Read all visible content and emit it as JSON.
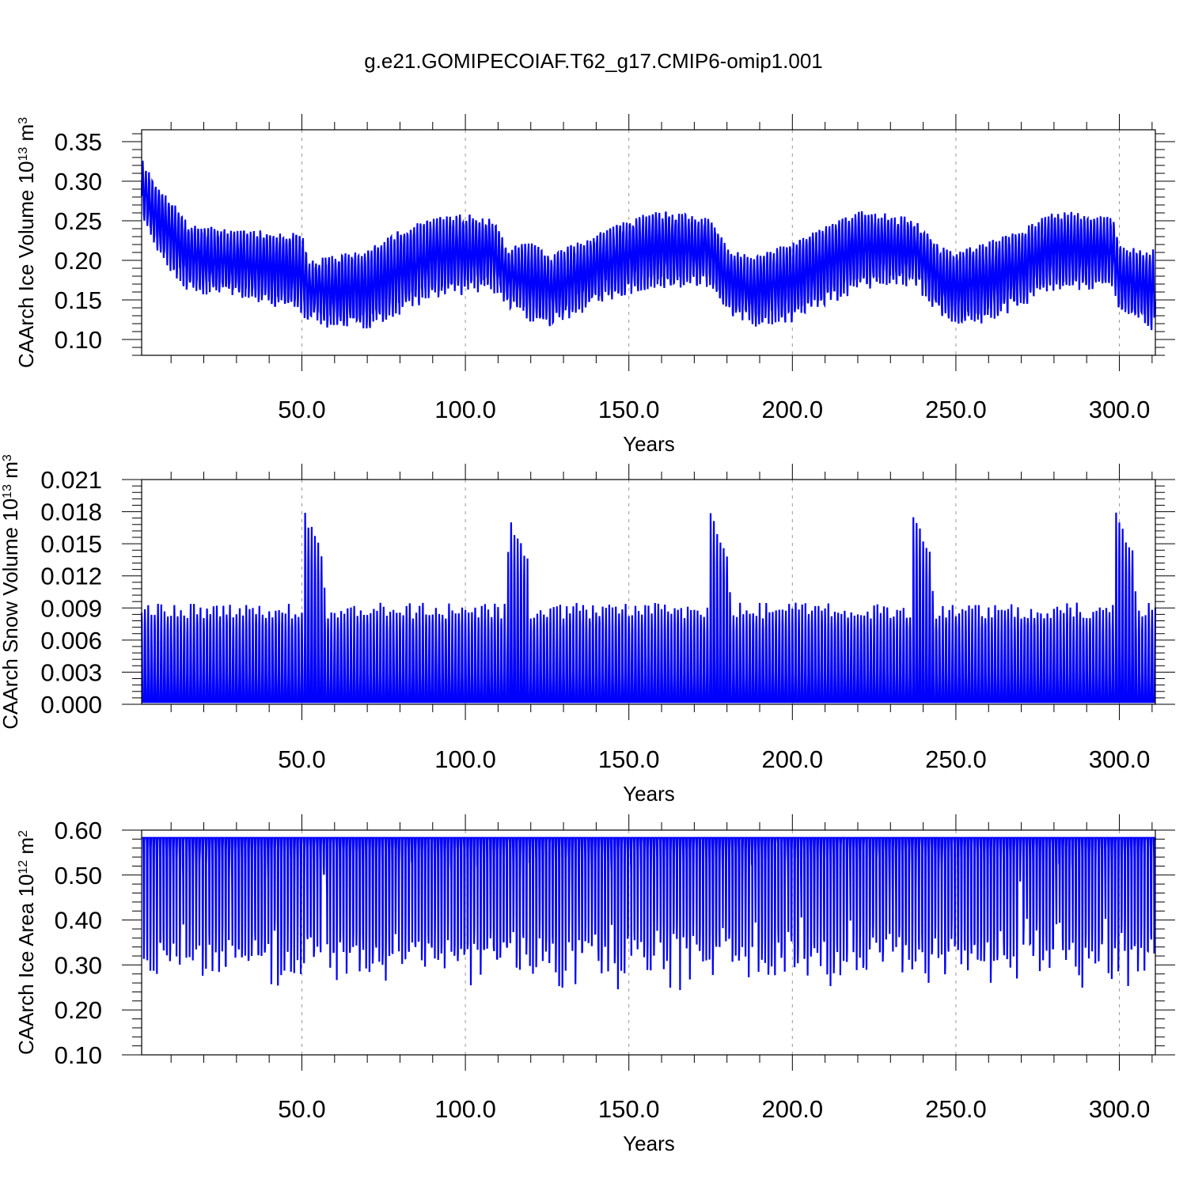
{
  "title": "g.e21.GOMIPECOIAF.T62_g17.CMIP6-omip1.001",
  "series_color": "#0000ff",
  "chart_data": [
    {
      "type": "line",
      "name": "ice_volume",
      "ylabel": "CAArch Ice Volume 10",
      "ylabel_exp": "13",
      "ylabel_unit": " m",
      "ylabel_unit_exp": "3",
      "xlabel": "Years",
      "xlim": [
        1,
        311
      ],
      "ylim": [
        0.08,
        0.365
      ],
      "xticks": [
        50,
        100,
        150,
        200,
        250,
        300
      ],
      "xtick_labels": [
        "50.0",
        "100.0",
        "150.0",
        "200.0",
        "250.0",
        "300.0"
      ],
      "yticks": [
        0.1,
        0.15,
        0.2,
        0.25,
        0.3,
        0.35
      ],
      "ytick_labels": [
        "0.10",
        "0.15",
        "0.20",
        "0.25",
        "0.30",
        "0.35"
      ],
      "grid": "vertical dashed at major x ticks",
      "series_max_year": [
        1,
        5,
        10,
        15,
        20,
        30,
        40,
        50,
        52,
        60,
        70,
        80,
        90,
        100,
        108,
        113,
        120,
        126,
        135,
        145,
        158,
        168,
        175,
        180,
        188,
        200,
        210,
        220,
        230,
        237,
        245,
        250,
        260,
        270,
        280,
        290,
        298,
        300,
        310
      ],
      "series_max": [
        0.33,
        0.3,
        0.28,
        0.25,
        0.245,
        0.24,
        0.24,
        0.235,
        0.2,
        0.21,
        0.215,
        0.24,
        0.255,
        0.26,
        0.255,
        0.22,
        0.225,
        0.21,
        0.225,
        0.245,
        0.265,
        0.26,
        0.255,
        0.22,
        0.205,
        0.225,
        0.245,
        0.265,
        0.26,
        0.255,
        0.22,
        0.215,
        0.225,
        0.24,
        0.265,
        0.26,
        0.255,
        0.22,
        0.215
      ],
      "series_min": [
        0.25,
        0.21,
        0.18,
        0.16,
        0.155,
        0.15,
        0.14,
        0.13,
        0.12,
        0.11,
        0.11,
        0.13,
        0.15,
        0.155,
        0.16,
        0.14,
        0.12,
        0.115,
        0.13,
        0.15,
        0.16,
        0.165,
        0.165,
        0.13,
        0.115,
        0.12,
        0.14,
        0.16,
        0.165,
        0.165,
        0.13,
        0.115,
        0.12,
        0.14,
        0.16,
        0.16,
        0.165,
        0.13,
        0.11
      ]
    },
    {
      "type": "line",
      "name": "snow_volume",
      "ylabel": "CAArch Snow Volume 10",
      "ylabel_exp": "13",
      "ylabel_unit": " m",
      "ylabel_unit_exp": "3",
      "xlabel": "Years",
      "xlim": [
        1,
        311
      ],
      "ylim": [
        0.0,
        0.021
      ],
      "xticks": [
        50,
        100,
        150,
        200,
        250,
        300
      ],
      "xtick_labels": [
        "50.0",
        "100.0",
        "150.0",
        "200.0",
        "250.0",
        "300.0"
      ],
      "yticks": [
        0.0,
        0.003,
        0.006,
        0.009,
        0.012,
        0.015,
        0.018,
        0.021
      ],
      "ytick_labels": [
        "0.000",
        "0.003",
        "0.006",
        "0.009",
        "0.012",
        "0.015",
        "0.018",
        "0.021"
      ],
      "grid": "vertical dashed at major x ticks",
      "peak_years": [
        51,
        113,
        175,
        237,
        299
      ],
      "peak_value": 0.018,
      "typical_max": 0.0095,
      "typical_min": 0.0002
    },
    {
      "type": "line",
      "name": "ice_area",
      "ylabel": "CAArch Ice Area 10",
      "ylabel_exp": "12",
      "ylabel_unit": " m",
      "ylabel_unit_exp": "2",
      "xlabel": "Years",
      "xlim": [
        1,
        311
      ],
      "ylim": [
        0.1,
        0.6
      ],
      "xticks": [
        50,
        100,
        150,
        200,
        250,
        300
      ],
      "xtick_labels": [
        "50.0",
        "100.0",
        "150.0",
        "200.0",
        "250.0",
        "300.0"
      ],
      "yticks": [
        0.1,
        0.2,
        0.3,
        0.4,
        0.5,
        0.6
      ],
      "ytick_labels": [
        "0.10",
        "0.20",
        "0.30",
        "0.40",
        "0.50",
        "0.60"
      ],
      "grid": "vertical dashed at major x ticks",
      "winter_max": 0.583,
      "summer_min_range": [
        0.195,
        0.35
      ]
    }
  ]
}
